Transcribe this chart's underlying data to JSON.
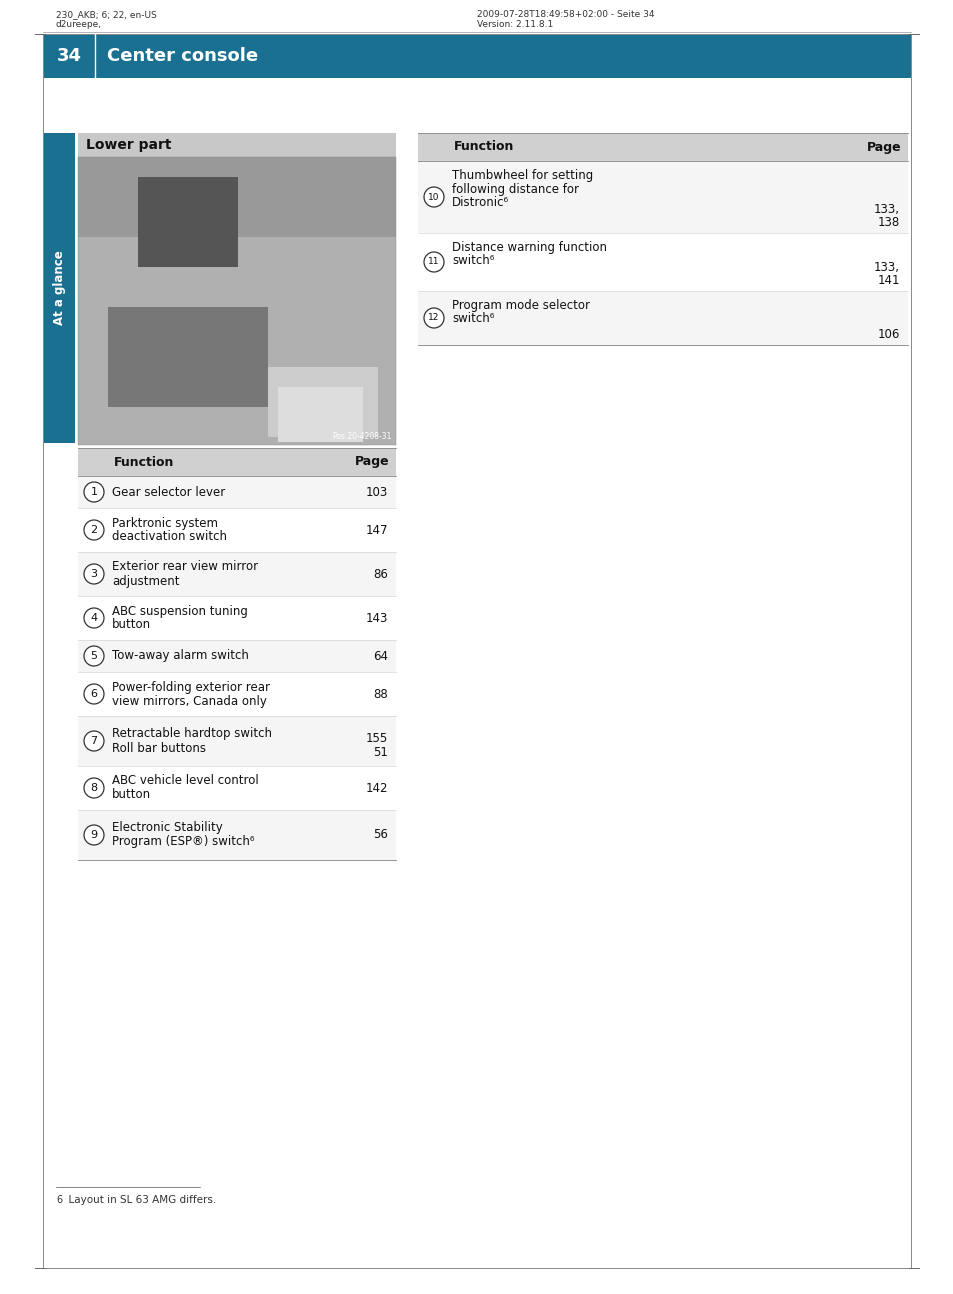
{
  "page_width": 9.54,
  "page_height": 12.94,
  "bg_color": "#ffffff",
  "header_top_left_1": "230_AKB; 6; 22, en-US",
  "header_top_left_2": "d2ureepe,",
  "header_top_right_1": "2009-07-28T18:49:58+02:00 - Seite 34",
  "header_top_right_2": "Version: 2.11.8.1",
  "header_bar_color": "#1a7090",
  "header_bar_text": "Center console",
  "header_page_num": "34",
  "side_tab_color": "#1a6080",
  "side_tab_text": "At a glance",
  "lower_part_title": "Lower part",
  "lower_part_title_bg": "#c8c8c8",
  "table_header_bg": "#d0d0d0",
  "table_row_bg_even": "#f5f5f5",
  "table_row_bg_odd": "#ffffff",
  "left_table_rows": [
    {
      "num": "1",
      "func_lines": [
        "Gear selector lever"
      ],
      "page_lines": [
        "103"
      ]
    },
    {
      "num": "2",
      "func_lines": [
        "Parktronic system",
        "deactivation switch"
      ],
      "page_lines": [
        "147"
      ]
    },
    {
      "num": "3",
      "func_lines": [
        "Exterior rear view mirror",
        "adjustment"
      ],
      "page_lines": [
        "86"
      ]
    },
    {
      "num": "4",
      "func_lines": [
        "ABC suspension tuning",
        "button"
      ],
      "page_lines": [
        "143"
      ]
    },
    {
      "num": "5",
      "func_lines": [
        "Tow-away alarm switch"
      ],
      "page_lines": [
        "64"
      ]
    },
    {
      "num": "6",
      "func_lines": [
        "Power-folding exterior rear",
        "view mirrors, Canada only"
      ],
      "page_lines": [
        "88"
      ]
    },
    {
      "num": "7",
      "func_lines": [
        "Retractable hardtop switch",
        "Roll bar buttons"
      ],
      "page_lines": [
        "155",
        "51"
      ]
    },
    {
      "num": "8",
      "func_lines": [
        "ABC vehicle level control",
        "button"
      ],
      "page_lines": [
        "142"
      ]
    },
    {
      "num": "9",
      "func_lines": [
        "Electronic Stability",
        "Program (ESP®) switch⁶"
      ],
      "page_lines": [
        "56"
      ]
    }
  ],
  "right_table_rows": [
    {
      "num": "10",
      "func_lines": [
        "Thumbwheel for setting",
        "following distance for",
        "Distronic⁶"
      ],
      "page_lines": [
        "133,",
        "138"
      ]
    },
    {
      "num": "11",
      "func_lines": [
        "Distance warning function",
        "switch⁶"
      ],
      "page_lines": [
        "133,",
        "141"
      ]
    },
    {
      "num": "12",
      "func_lines": [
        "Program mode selector",
        "switch⁶"
      ],
      "page_lines": [
        "106"
      ]
    }
  ],
  "footnote_line": "⁶  Layout in SL 63 AMG differs.",
  "footnote_num": "6",
  "footnote_text": "  Layout in SL 63 AMG differs.",
  "img_color": "#aaaaaa",
  "teal_color": "#1a7090"
}
